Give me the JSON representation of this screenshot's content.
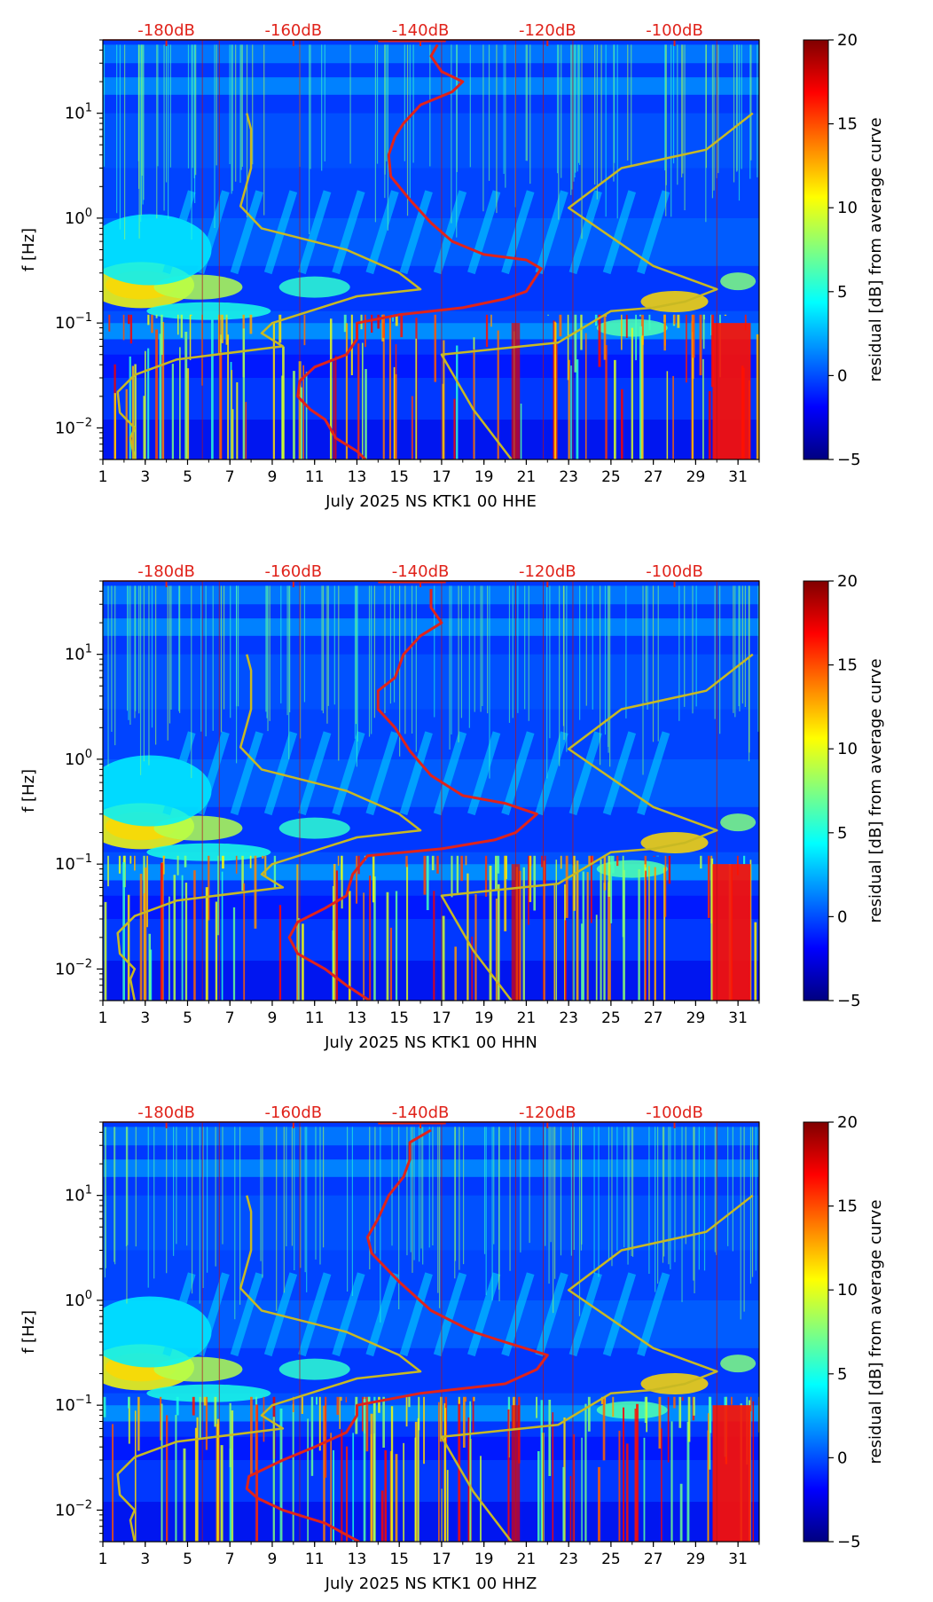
{
  "chart_data": [
    {
      "type": "heatmap",
      "xlabel": "July 2025 NS KTK1 00 HHE",
      "ylabel": "f [Hz]",
      "x_ticks": [
        "1",
        "3",
        "5",
        "7",
        "9",
        "11",
        "13",
        "15",
        "17",
        "19",
        "21",
        "23",
        "25",
        "27",
        "29",
        "31"
      ],
      "x_range": [
        1,
        32
      ],
      "y_scale": "log",
      "y_range": [
        0.005,
        50
      ],
      "y_ticks": [
        "10^-2",
        "10^-1",
        "10^0",
        "10^1"
      ],
      "top_axis_ticks": [
        "-180dB",
        "-160dB",
        "-140dB",
        "-120dB",
        "-100dB"
      ],
      "colorbar": {
        "label": "residual [dB] from average curve",
        "range": [
          -5,
          20
        ],
        "ticks": [
          "−5",
          "0",
          "5",
          "10",
          "15",
          "20"
        ]
      },
      "series": [
        {
          "color": "#e0231b",
          "points": [
            [
              13.4,
              0.005
            ],
            [
              13,
              0.006
            ],
            [
              12,
              0.008
            ],
            [
              11.5,
              0.012
            ],
            [
              10.8,
              0.015
            ],
            [
              10.2,
              0.02
            ],
            [
              10.3,
              0.028
            ],
            [
              11,
              0.038
            ],
            [
              12.5,
              0.05
            ],
            [
              13,
              0.07
            ],
            [
              13,
              0.1
            ],
            [
              15,
              0.12
            ],
            [
              18,
              0.14
            ],
            [
              20,
              0.17
            ],
            [
              21,
              0.2
            ],
            [
              21.7,
              0.33
            ],
            [
              21,
              0.4
            ],
            [
              19,
              0.45
            ],
            [
              17.5,
              0.6
            ],
            [
              16.5,
              0.9
            ],
            [
              15.5,
              1.5
            ],
            [
              14.6,
              2.5
            ],
            [
              14.5,
              4
            ],
            [
              14.8,
              6
            ],
            [
              15.2,
              8
            ],
            [
              16,
              12
            ],
            [
              17.5,
              16
            ],
            [
              18,
              20
            ],
            [
              17,
              25
            ],
            [
              16.5,
              35
            ],
            [
              16.8,
              45
            ]
          ]
        },
        {
          "color": "#c8b923",
          "points": [
            [
              2.5,
              0.005
            ],
            [
              2.3,
              0.008
            ],
            [
              2.5,
              0.01
            ],
            [
              1.8,
              0.014
            ],
            [
              1.7,
              0.022
            ],
            [
              2.5,
              0.032
            ],
            [
              4.5,
              0.045
            ],
            [
              9.5,
              0.06
            ],
            [
              8.5,
              0.08
            ],
            [
              9,
              0.1
            ],
            [
              13,
              0.18
            ],
            [
              16,
              0.21
            ],
            [
              15,
              0.3
            ],
            [
              12.5,
              0.5
            ],
            [
              8.5,
              0.8
            ],
            [
              7.5,
              1.3
            ],
            [
              8,
              3
            ],
            [
              8,
              7
            ],
            [
              7.8,
              10
            ]
          ]
        },
        {
          "color": "#c8b923",
          "points": [
            [
              20.3,
              0.005
            ],
            [
              18.5,
              0.015
            ],
            [
              17,
              0.05
            ],
            [
              22.5,
              0.065
            ],
            [
              25,
              0.13
            ],
            [
              27,
              0.14
            ],
            [
              28.5,
              0.16
            ],
            [
              30,
              0.21
            ],
            [
              27,
              0.35
            ],
            [
              23,
              1.25
            ],
            [
              25.5,
              3
            ],
            [
              29.5,
              4.5
            ],
            [
              31.7,
              10
            ]
          ]
        }
      ]
    },
    {
      "type": "heatmap",
      "xlabel": "July 2025 NS KTK1 00 HHN",
      "ylabel": "f [Hz]",
      "x_ticks": [
        "1",
        "3",
        "5",
        "7",
        "9",
        "11",
        "13",
        "15",
        "17",
        "19",
        "21",
        "23",
        "25",
        "27",
        "29",
        "31"
      ],
      "x_range": [
        1,
        32
      ],
      "y_scale": "log",
      "y_range": [
        0.005,
        50
      ],
      "y_ticks": [
        "10^-2",
        "10^-1",
        "10^0",
        "10^1"
      ],
      "top_axis_ticks": [
        "-180dB",
        "-160dB",
        "-140dB",
        "-120dB",
        "-100dB"
      ],
      "colorbar": {
        "label": "residual [dB] from average curve",
        "range": [
          -5,
          20
        ],
        "ticks": [
          "−5",
          "0",
          "5",
          "10",
          "15",
          "20"
        ]
      },
      "series": [
        {
          "color": "#e0231b",
          "points": [
            [
              13.6,
              0.005
            ],
            [
              12.5,
              0.007
            ],
            [
              11.5,
              0.01
            ],
            [
              10.2,
              0.014
            ],
            [
              9.8,
              0.02
            ],
            [
              10.2,
              0.028
            ],
            [
              11.5,
              0.038
            ],
            [
              12.5,
              0.05
            ],
            [
              12.8,
              0.08
            ],
            [
              13.5,
              0.12
            ],
            [
              17,
              0.14
            ],
            [
              19.5,
              0.17
            ],
            [
              20.5,
              0.2
            ],
            [
              21.5,
              0.3
            ],
            [
              20,
              0.38
            ],
            [
              18,
              0.45
            ],
            [
              16.5,
              0.7
            ],
            [
              15.5,
              1.2
            ],
            [
              14.8,
              2
            ],
            [
              14,
              3
            ],
            [
              14,
              4.5
            ],
            [
              14.8,
              6
            ],
            [
              15.2,
              10
            ],
            [
              16,
              15
            ],
            [
              17,
              20
            ],
            [
              16.5,
              28
            ],
            [
              16.5,
              42
            ]
          ]
        },
        {
          "color": "#c8b923",
          "points": [
            [
              2.5,
              0.005
            ],
            [
              2.3,
              0.008
            ],
            [
              2.5,
              0.01
            ],
            [
              1.8,
              0.014
            ],
            [
              1.7,
              0.022
            ],
            [
              2.5,
              0.032
            ],
            [
              4.5,
              0.045
            ],
            [
              9.5,
              0.06
            ],
            [
              8.5,
              0.08
            ],
            [
              9,
              0.1
            ],
            [
              13,
              0.18
            ],
            [
              16,
              0.21
            ],
            [
              15,
              0.3
            ],
            [
              12.5,
              0.5
            ],
            [
              8.5,
              0.8
            ],
            [
              7.5,
              1.3
            ],
            [
              8,
              3
            ],
            [
              8,
              7
            ],
            [
              7.8,
              10
            ]
          ]
        },
        {
          "color": "#c8b923",
          "points": [
            [
              20.3,
              0.005
            ],
            [
              18.5,
              0.015
            ],
            [
              17,
              0.05
            ],
            [
              22.5,
              0.065
            ],
            [
              25,
              0.13
            ],
            [
              27,
              0.14
            ],
            [
              28.5,
              0.16
            ],
            [
              30,
              0.21
            ],
            [
              27,
              0.35
            ],
            [
              23,
              1.25
            ],
            [
              25.5,
              3
            ],
            [
              29.5,
              4.5
            ],
            [
              31.7,
              10
            ]
          ]
        }
      ]
    },
    {
      "type": "heatmap",
      "xlabel": "July 2025 NS KTK1 00 HHZ",
      "ylabel": "f [Hz]",
      "x_ticks": [
        "1",
        "3",
        "5",
        "7",
        "9",
        "11",
        "13",
        "15",
        "17",
        "19",
        "21",
        "23",
        "25",
        "27",
        "29",
        "31"
      ],
      "x_range": [
        1,
        32
      ],
      "y_scale": "log",
      "y_range": [
        0.005,
        50
      ],
      "y_ticks": [
        "10^-2",
        "10^-1",
        "10^0",
        "10^1"
      ],
      "top_axis_ticks": [
        "-180dB",
        "-160dB",
        "-140dB",
        "-120dB",
        "-100dB"
      ],
      "colorbar": {
        "label": "residual [dB] from average curve",
        "range": [
          -5,
          20
        ],
        "ticks": [
          "−5",
          "0",
          "5",
          "10",
          "15",
          "20"
        ]
      },
      "series": [
        {
          "color": "#e0231b",
          "points": [
            [
              13.1,
              0.005
            ],
            [
              11.5,
              0.0075
            ],
            [
              9.5,
              0.01
            ],
            [
              8.3,
              0.013
            ],
            [
              7.8,
              0.016
            ],
            [
              7.9,
              0.021
            ],
            [
              9.5,
              0.03
            ],
            [
              11,
              0.04
            ],
            [
              12.5,
              0.055
            ],
            [
              13,
              0.08
            ],
            [
              13,
              0.1
            ],
            [
              16,
              0.13
            ],
            [
              20,
              0.16
            ],
            [
              21.5,
              0.22
            ],
            [
              22,
              0.3
            ],
            [
              20,
              0.4
            ],
            [
              18.5,
              0.5
            ],
            [
              16.5,
              0.8
            ],
            [
              15,
              1.5
            ],
            [
              13.7,
              2.8
            ],
            [
              13.5,
              4
            ],
            [
              14,
              6
            ],
            [
              14.5,
              10
            ],
            [
              15.2,
              15
            ],
            [
              15.5,
              22
            ],
            [
              15.5,
              32
            ],
            [
              16.5,
              42
            ]
          ]
        },
        {
          "color": "#c8b923",
          "points": [
            [
              2.5,
              0.005
            ],
            [
              2.3,
              0.008
            ],
            [
              2.5,
              0.01
            ],
            [
              1.8,
              0.014
            ],
            [
              1.7,
              0.022
            ],
            [
              2.5,
              0.032
            ],
            [
              4.5,
              0.045
            ],
            [
              9.5,
              0.06
            ],
            [
              8.5,
              0.08
            ],
            [
              9,
              0.1
            ],
            [
              13,
              0.18
            ],
            [
              16,
              0.21
            ],
            [
              15,
              0.3
            ],
            [
              12.5,
              0.5
            ],
            [
              8.5,
              0.8
            ],
            [
              7.5,
              1.3
            ],
            [
              8,
              3
            ],
            [
              8,
              7
            ],
            [
              7.8,
              10
            ]
          ]
        },
        {
          "color": "#c8b923",
          "points": [
            [
              20.3,
              0.005
            ],
            [
              18.5,
              0.015
            ],
            [
              17,
              0.05
            ],
            [
              22.5,
              0.065
            ],
            [
              25,
              0.13
            ],
            [
              27,
              0.14
            ],
            [
              28.5,
              0.16
            ],
            [
              30,
              0.21
            ],
            [
              27,
              0.35
            ],
            [
              23,
              1.25
            ],
            [
              25.5,
              3
            ],
            [
              29.5,
              4.5
            ],
            [
              31.7,
              10
            ]
          ]
        }
      ]
    }
  ]
}
